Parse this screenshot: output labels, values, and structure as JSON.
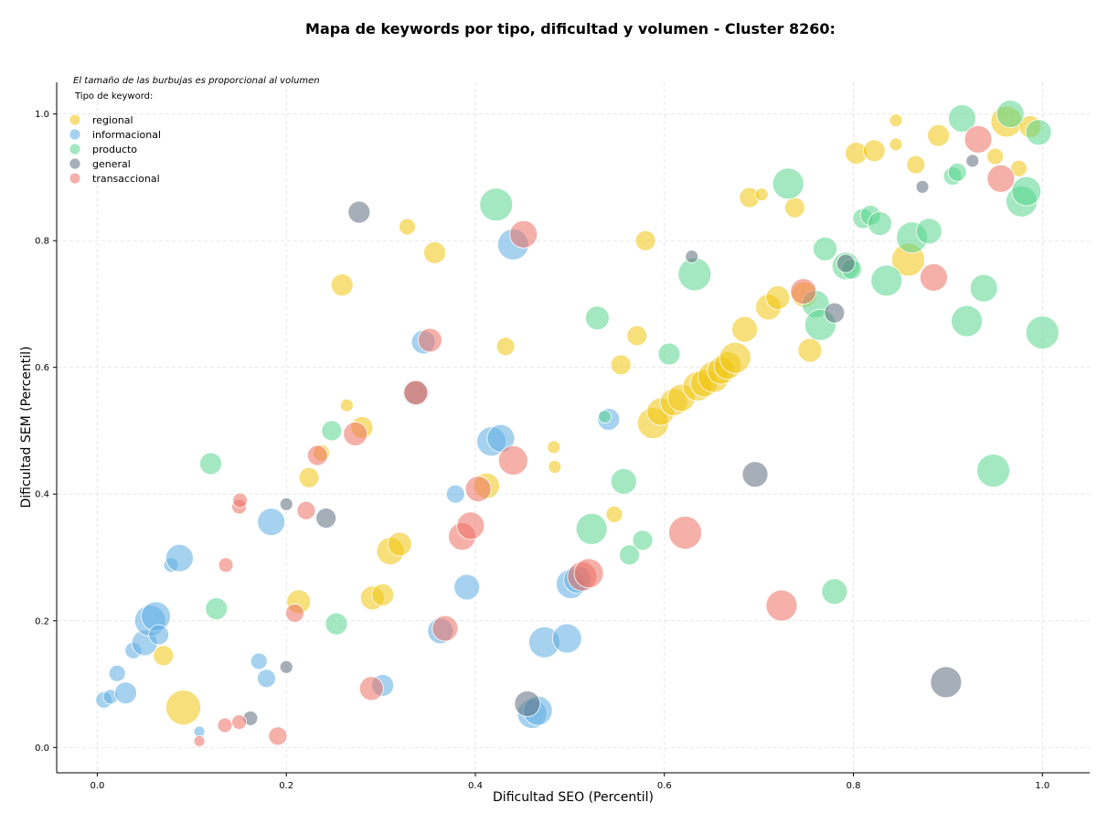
{
  "chart_data": {
    "type": "scatter",
    "title": "Mapa de keywords por tipo, dificultad y volumen - Cluster 8260:",
    "xlabel": "Dificultad SEO (Percentil)",
    "ylabel": "Dificultad SEM (Percentil)",
    "xlim": [
      -0.043,
      1.05
    ],
    "ylim": [
      -0.04,
      1.05
    ],
    "xticks": [
      "0.0",
      "0.2",
      "0.4",
      "0.6",
      "0.8",
      "1.0"
    ],
    "yticks": [
      "0.0",
      "0.2",
      "0.4",
      "0.6",
      "0.8",
      "1.0"
    ],
    "grid": true,
    "note": "El tamaño de las burbujas es proporcional al volumen",
    "legend_title": "Tipo de keyword:",
    "legend_position": "top-left",
    "series": [
      {
        "name": "regional",
        "color": "#f1c40f",
        "points": [
          [
            0.091,
            0.063,
            38
          ],
          [
            0.07,
            0.145,
            22
          ],
          [
            0.213,
            0.23,
            26
          ],
          [
            0.224,
            0.426,
            22
          ],
          [
            0.237,
            0.465,
            18
          ],
          [
            0.264,
            0.54,
            14
          ],
          [
            0.259,
            0.73,
            24
          ],
          [
            0.28,
            0.505,
            24
          ],
          [
            0.291,
            0.236,
            26
          ],
          [
            0.302,
            0.241,
            24
          ],
          [
            0.31,
            0.31,
            30
          ],
          [
            0.32,
            0.321,
            26
          ],
          [
            0.328,
            0.822,
            18
          ],
          [
            0.357,
            0.781,
            24
          ],
          [
            0.412,
            0.413,
            28
          ],
          [
            0.432,
            0.633,
            20
          ],
          [
            0.483,
            0.474,
            14
          ],
          [
            0.484,
            0.443,
            14
          ],
          [
            0.547,
            0.368,
            18
          ],
          [
            0.554,
            0.604,
            22
          ],
          [
            0.571,
            0.65,
            22
          ],
          [
            0.58,
            0.8,
            22
          ],
          [
            0.588,
            0.512,
            34
          ],
          [
            0.596,
            0.53,
            30
          ],
          [
            0.61,
            0.545,
            30
          ],
          [
            0.618,
            0.552,
            30
          ],
          [
            0.635,
            0.57,
            32
          ],
          [
            0.642,
            0.575,
            30
          ],
          [
            0.652,
            0.585,
            34
          ],
          [
            0.66,
            0.595,
            30
          ],
          [
            0.667,
            0.603,
            30
          ],
          [
            0.675,
            0.615,
            34
          ],
          [
            0.685,
            0.66,
            28
          ],
          [
            0.69,
            0.868,
            22
          ],
          [
            0.703,
            0.873,
            14
          ],
          [
            0.71,
            0.695,
            28
          ],
          [
            0.72,
            0.71,
            26
          ],
          [
            0.738,
            0.852,
            22
          ],
          [
            0.748,
            0.715,
            28
          ],
          [
            0.754,
            0.627,
            26
          ],
          [
            0.803,
            0.938,
            24
          ],
          [
            0.822,
            0.942,
            24
          ],
          [
            0.845,
            0.952,
            14
          ],
          [
            0.845,
            0.99,
            14
          ],
          [
            0.858,
            0.77,
            36
          ],
          [
            0.866,
            0.92,
            20
          ],
          [
            0.89,
            0.966,
            24
          ],
          [
            0.95,
            0.933,
            18
          ],
          [
            0.962,
            0.988,
            34
          ],
          [
            0.975,
            0.914,
            18
          ],
          [
            0.987,
            0.98,
            24
          ]
        ]
      },
      {
        "name": "informacional",
        "color": "#5dade2",
        "points": [
          [
            0.007,
            0.075,
            18
          ],
          [
            0.014,
            0.08,
            16
          ],
          [
            0.021,
            0.117,
            18
          ],
          [
            0.03,
            0.086,
            24
          ],
          [
            0.038,
            0.153,
            18
          ],
          [
            0.05,
            0.165,
            28
          ],
          [
            0.056,
            0.2,
            34
          ],
          [
            0.062,
            0.207,
            32
          ],
          [
            0.065,
            0.178,
            22
          ],
          [
            0.078,
            0.288,
            16
          ],
          [
            0.087,
            0.299,
            30
          ],
          [
            0.108,
            0.025,
            12
          ],
          [
            0.171,
            0.136,
            18
          ],
          [
            0.179,
            0.109,
            20
          ],
          [
            0.184,
            0.356,
            30
          ],
          [
            0.302,
            0.098,
            24
          ],
          [
            0.345,
            0.64,
            26
          ],
          [
            0.363,
            0.184,
            28
          ],
          [
            0.379,
            0.4,
            20
          ],
          [
            0.391,
            0.253,
            28
          ],
          [
            0.417,
            0.483,
            32
          ],
          [
            0.427,
            0.488,
            30
          ],
          [
            0.44,
            0.794,
            34
          ],
          [
            0.46,
            0.053,
            32
          ],
          [
            0.466,
            0.058,
            32
          ],
          [
            0.473,
            0.166,
            34
          ],
          [
            0.497,
            0.172,
            32
          ],
          [
            0.501,
            0.258,
            32
          ],
          [
            0.508,
            0.265,
            30
          ],
          [
            0.541,
            0.518,
            24
          ]
        ]
      },
      {
        "name": "producto",
        "color": "#58d68d",
        "points": [
          [
            0.12,
            0.448,
            24
          ],
          [
            0.126,
            0.219,
            24
          ],
          [
            0.248,
            0.5,
            22
          ],
          [
            0.253,
            0.195,
            24
          ],
          [
            0.422,
            0.857,
            36
          ],
          [
            0.523,
            0.345,
            34
          ],
          [
            0.529,
            0.678,
            26
          ],
          [
            0.537,
            0.522,
            14
          ],
          [
            0.557,
            0.42,
            28
          ],
          [
            0.563,
            0.304,
            22
          ],
          [
            0.577,
            0.327,
            22
          ],
          [
            0.605,
            0.621,
            24
          ],
          [
            0.632,
            0.747,
            36
          ],
          [
            0.731,
            0.89,
            34
          ],
          [
            0.76,
            0.7,
            30
          ],
          [
            0.765,
            0.667,
            34
          ],
          [
            0.77,
            0.787,
            26
          ],
          [
            0.78,
            0.246,
            28
          ],
          [
            0.792,
            0.76,
            30
          ],
          [
            0.798,
            0.755,
            22
          ],
          [
            0.81,
            0.835,
            22
          ],
          [
            0.818,
            0.84,
            22
          ],
          [
            0.828,
            0.827,
            26
          ],
          [
            0.835,
            0.737,
            34
          ],
          [
            0.862,
            0.805,
            34
          ],
          [
            0.88,
            0.815,
            28
          ],
          [
            0.905,
            0.902,
            20
          ],
          [
            0.91,
            0.908,
            20
          ],
          [
            0.915,
            0.993,
            30
          ],
          [
            0.92,
            0.673,
            34
          ],
          [
            0.938,
            0.725,
            30
          ],
          [
            0.948,
            0.437,
            36
          ],
          [
            0.966,
            1.0,
            30
          ],
          [
            0.978,
            0.862,
            34
          ],
          [
            0.983,
            0.878,
            32
          ],
          [
            0.996,
            0.971,
            28
          ],
          [
            1.0,
            0.655,
            36
          ]
        ]
      },
      {
        "name": "general",
        "color": "#5d6d7e",
        "points": [
          [
            0.162,
            0.046,
            16
          ],
          [
            0.2,
            0.384,
            14
          ],
          [
            0.2,
            0.127,
            14
          ],
          [
            0.242,
            0.362,
            22
          ],
          [
            0.277,
            0.845,
            24
          ],
          [
            0.337,
            0.56,
            28
          ],
          [
            0.455,
            0.069,
            28
          ],
          [
            0.629,
            0.775,
            14
          ],
          [
            0.696,
            0.431,
            28
          ],
          [
            0.78,
            0.686,
            22
          ],
          [
            0.792,
            0.764,
            20
          ],
          [
            0.873,
            0.885,
            14
          ],
          [
            0.898,
            0.103,
            34
          ],
          [
            0.926,
            0.926,
            14
          ]
        ]
      },
      {
        "name": "transaccional",
        "color": "#ec7063",
        "points": [
          [
            0.108,
            0.01,
            12
          ],
          [
            0.135,
            0.035,
            16
          ],
          [
            0.136,
            0.288,
            16
          ],
          [
            0.15,
            0.38,
            16
          ],
          [
            0.15,
            0.04,
            16
          ],
          [
            0.151,
            0.39,
            16
          ],
          [
            0.191,
            0.018,
            20
          ],
          [
            0.209,
            0.212,
            20
          ],
          [
            0.221,
            0.374,
            20
          ],
          [
            0.233,
            0.461,
            22
          ],
          [
            0.273,
            0.495,
            26
          ],
          [
            0.29,
            0.093,
            26
          ],
          [
            0.337,
            0.56,
            26
          ],
          [
            0.352,
            0.643,
            26
          ],
          [
            0.368,
            0.188,
            28
          ],
          [
            0.386,
            0.333,
            30
          ],
          [
            0.395,
            0.35,
            30
          ],
          [
            0.403,
            0.408,
            28
          ],
          [
            0.44,
            0.453,
            32
          ],
          [
            0.451,
            0.81,
            30
          ],
          [
            0.513,
            0.27,
            32
          ],
          [
            0.52,
            0.275,
            32
          ],
          [
            0.622,
            0.339,
            36
          ],
          [
            0.724,
            0.224,
            34
          ],
          [
            0.747,
            0.72,
            28
          ],
          [
            0.885,
            0.742,
            30
          ],
          [
            0.932,
            0.96,
            30
          ],
          [
            0.956,
            0.898,
            30
          ]
        ]
      }
    ]
  }
}
